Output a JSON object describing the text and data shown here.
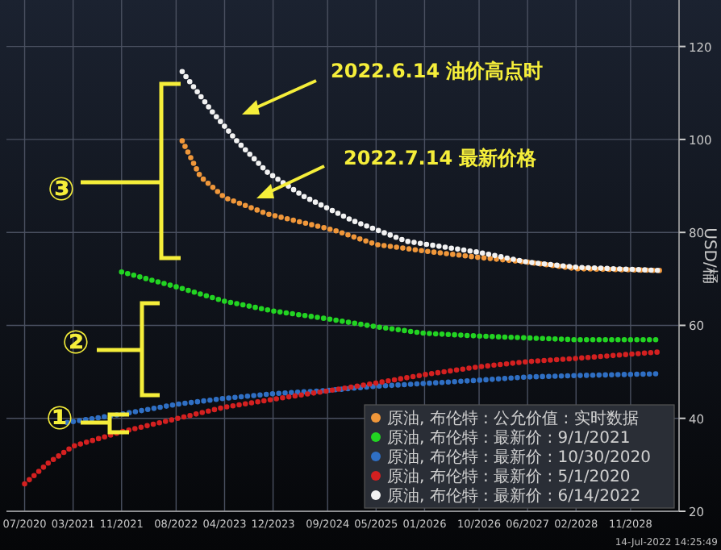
{
  "chart_data": {
    "type": "line",
    "ylabel": "USD/桶",
    "xlim": [
      "2020-04",
      "2029-07"
    ],
    "ylim": [
      20,
      130
    ],
    "xticks": [
      {
        "value": "2020-07",
        "label": "07/2020"
      },
      {
        "value": "2021-03",
        "label": "03/2021"
      },
      {
        "value": "2021-11",
        "label": "11/2021"
      },
      {
        "value": "2022-08",
        "label": "08/2022"
      },
      {
        "value": "2023-04",
        "label": "04/2023"
      },
      {
        "value": "2023-12",
        "label": "12/2023"
      },
      {
        "value": "2024-09",
        "label": "09/2024"
      },
      {
        "value": "2025-05",
        "label": "05/2025"
      },
      {
        "value": "2026-01",
        "label": "01/2026"
      },
      {
        "value": "2026-10",
        "label": "10/2026"
      },
      {
        "value": "2027-06",
        "label": "06/2027"
      },
      {
        "value": "2028-02",
        "label": "02/2028"
      },
      {
        "value": "2028-11",
        "label": "11/2028"
      }
    ],
    "yticks": [
      20,
      40,
      60,
      80,
      100,
      120
    ],
    "grid": true,
    "legend": "bottom right",
    "line_style": "dotted",
    "series": [
      {
        "name": "原油, 布伦特 : 公允价值 : 实时数据",
        "color": "#f0973a",
        "x": [
          "2022-09",
          "2022-12",
          "2023-04",
          "2023-11",
          "2024-10",
          "2025-05",
          "2026-01",
          "2026-10",
          "2027-06",
          "2028-02",
          "2029-04"
        ],
        "values": [
          99.7,
          92,
          87.5,
          84,
          80.5,
          77.4,
          76,
          74.6,
          73.6,
          72.2,
          71.8
        ]
      },
      {
        "name": "原油, 布伦特 : 最新价 : 9/1/2021",
        "color": "#22d422",
        "x": [
          "2021-11",
          "2022-08",
          "2023-04",
          "2023-12",
          "2024-09",
          "2025-05",
          "2026-01",
          "2026-10",
          "2027-06",
          "2028-02",
          "2029-04"
        ],
        "values": [
          71.5,
          68.3,
          65.2,
          63.1,
          61.4,
          59.7,
          58.3,
          57.7,
          57.3,
          56.9,
          56.9
        ]
      },
      {
        "name": "原油, 布伦特 : 最新价 : 10/30/2020",
        "color": "#2f6fc4",
        "x": [
          "2021-02",
          "2021-11",
          "2022-08",
          "2023-04",
          "2023-12",
          "2024-09",
          "2025-05",
          "2026-01",
          "2026-10",
          "2027-06",
          "2028-02",
          "2029-04"
        ],
        "values": [
          39.1,
          40.9,
          43,
          44.3,
          45.3,
          46,
          46.9,
          47.5,
          48.2,
          48.9,
          49.2,
          49.6
        ]
      },
      {
        "name": "原油, 布伦特 : 最新价 : 5/1/2020",
        "color": "#d42020",
        "x": [
          "2020-07",
          "2020-11",
          "2021-03",
          "2021-11",
          "2022-08",
          "2023-04",
          "2023-12",
          "2024-09",
          "2025-05",
          "2026-01",
          "2026-10",
          "2027-06",
          "2028-02",
          "2029-04"
        ],
        "values": [
          25.9,
          30.5,
          34,
          37.1,
          39.9,
          42.4,
          44.1,
          45.9,
          47.6,
          49.4,
          51.1,
          52.2,
          52.9,
          54.3
        ]
      },
      {
        "name": "原油, 布伦特 : 最新价 : 6/14/2022",
        "color": "#f2f2f2",
        "x": [
          "2022-09",
          "2023-02",
          "2023-06",
          "2023-11",
          "2024-05",
          "2025-01",
          "2025-10",
          "2026-10",
          "2027-06",
          "2028-02",
          "2029-04"
        ],
        "values": [
          114.6,
          105.9,
          99.7,
          93,
          87.8,
          82.6,
          78.1,
          75.7,
          73.6,
          72.5,
          71.8
        ]
      }
    ],
    "annotations": [
      "2022.6.14  油价高点时",
      "2022.7.14  最新价格",
      "①",
      "②",
      "③",
      "14-Jul-2022 14:25:49"
    ]
  }
}
